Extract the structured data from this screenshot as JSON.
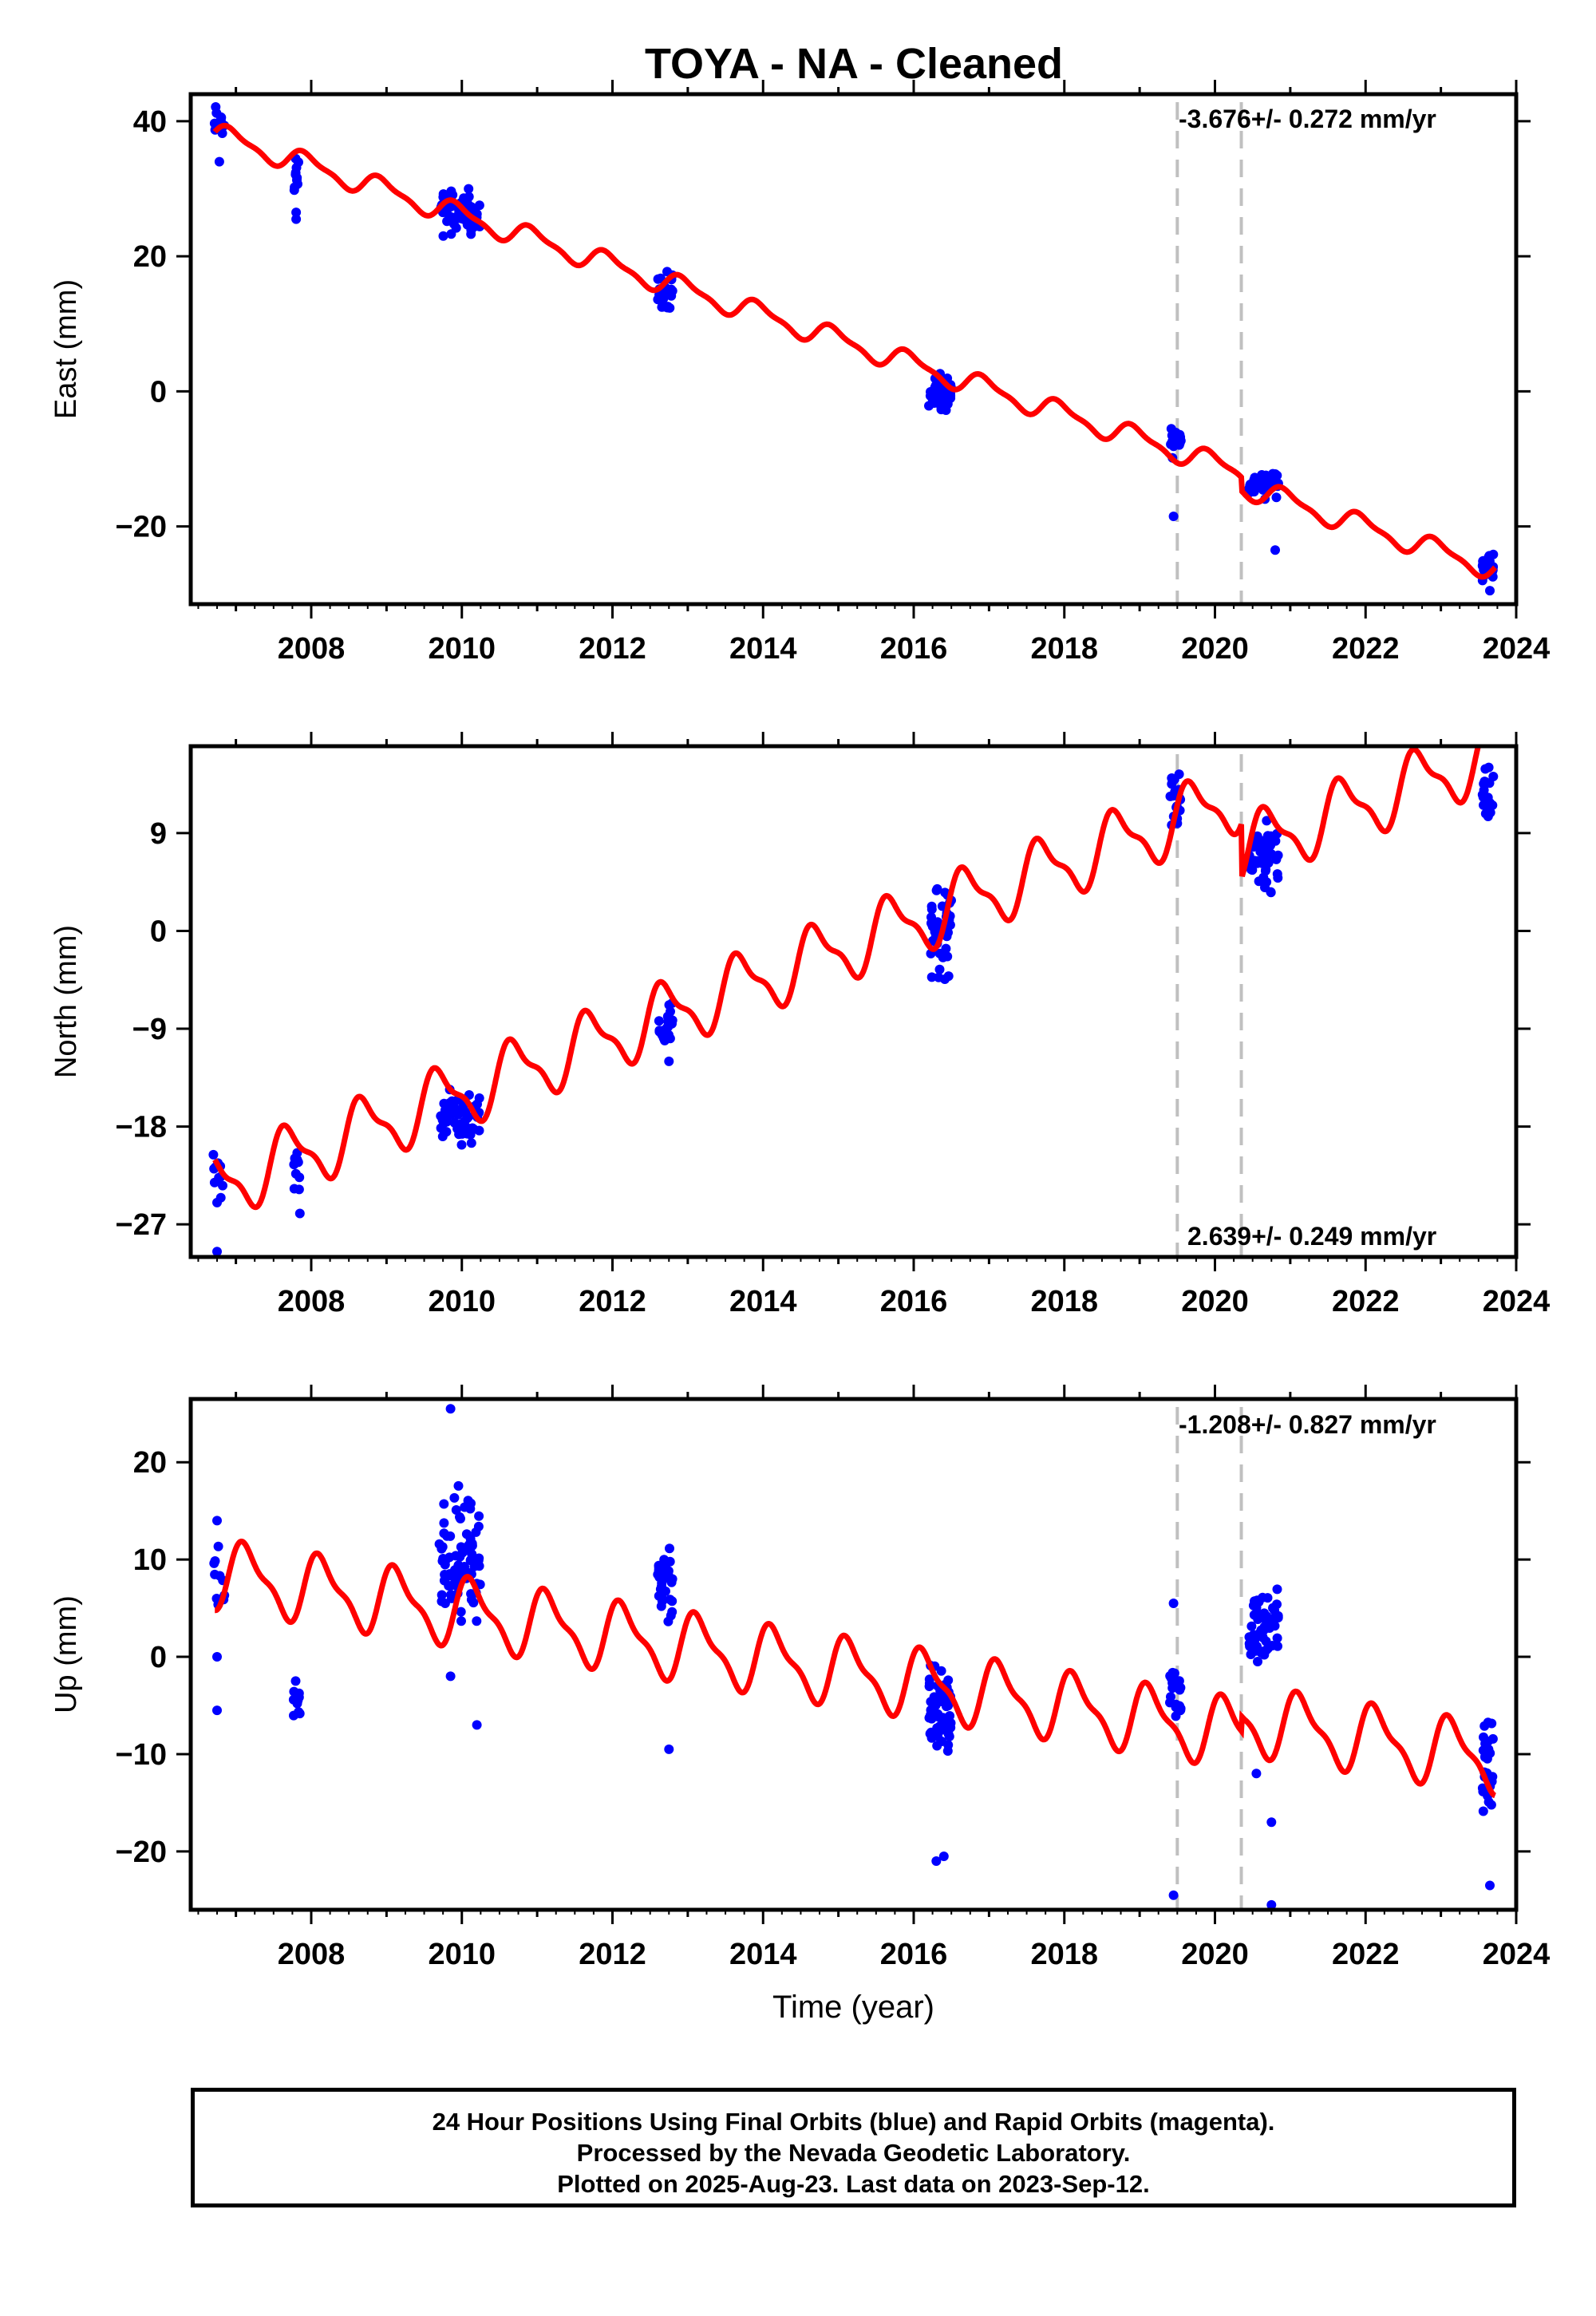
{
  "title": "TOYA  - NA - Cleaned",
  "footer": {
    "line1": "24 Hour Positions Using Final Orbits (blue) and Rapid Orbits (magenta).",
    "line2": "Processed by the Nevada Geodetic Laboratory.",
    "line3": "Plotted on 2025-Aug-23. Last data on 2023-Sep-12."
  },
  "colors": {
    "data": "#0000ff",
    "model": "#ff0000",
    "event_lines": "#c0c0c0"
  },
  "chart_data": [
    {
      "type": "scatter",
      "component": "East",
      "ylabel": "East (mm)",
      "xlabel": "",
      "xlim": [
        2006.4,
        2024.0
      ],
      "ylim": [
        -31.5,
        44
      ],
      "xticks": [
        "2008",
        "2010",
        "2012",
        "2014",
        "2016",
        "2018",
        "2020",
        "2022",
        "2024"
      ],
      "yticks": [
        "-20",
        "0",
        "20",
        "40"
      ],
      "event_lines": [
        2019.5,
        2020.35
      ],
      "rate_text": "-3.676+/- 0.272 mm/yr",
      "model": {
        "a0": 38,
        "slope": -3.676,
        "intercept_year": 2006.75,
        "amp": 1.5,
        "phase": 0.3,
        "steps": [
          {
            "t": 2020.35,
            "dy": -2.0
          }
        ]
      },
      "clusters": [
        {
          "t0": 2006.7,
          "t1": 2006.85,
          "center": 39.5,
          "spread": 2.0,
          "n": 10
        },
        {
          "t0": 2007.75,
          "t1": 2007.85,
          "center": 32.5,
          "spread": 3.0,
          "n": 10
        },
        {
          "t0": 2009.7,
          "t1": 2010.25,
          "center": 26.5,
          "spread": 2.4,
          "n": 60
        },
        {
          "t0": 2012.6,
          "t1": 2012.8,
          "center": 15.0,
          "spread": 2.0,
          "n": 22
        },
        {
          "t0": 2016.2,
          "t1": 2016.5,
          "center": -0.5,
          "spread": 2.0,
          "n": 50
        },
        {
          "t0": 2019.4,
          "t1": 2019.55,
          "center": -7.5,
          "spread": 1.5,
          "n": 18
        },
        {
          "t0": 2020.45,
          "t1": 2020.85,
          "center": -13.5,
          "spread": 1.5,
          "n": 45
        },
        {
          "t0": 2023.55,
          "t1": 2023.7,
          "center": -26.0,
          "spread": 1.5,
          "n": 22
        }
      ],
      "outliers": [
        [
          2006.78,
          34.0
        ],
        [
          2007.8,
          25.5
        ],
        [
          2007.8,
          26.5
        ],
        [
          2019.45,
          -18.5
        ],
        [
          2020.8,
          -23.5
        ],
        [
          2023.65,
          -29.5
        ]
      ]
    },
    {
      "type": "scatter",
      "component": "North",
      "ylabel": "North (mm)",
      "xlabel": "",
      "xlim": [
        2006.4,
        2024.0
      ],
      "ylim": [
        -30,
        17
      ],
      "xticks": [
        "2008",
        "2010",
        "2012",
        "2014",
        "2016",
        "2018",
        "2020",
        "2022",
        "2024"
      ],
      "yticks": [
        "-27",
        "-18",
        "-9",
        "0",
        "9"
      ],
      "event_lines": [
        2019.5,
        2020.35
      ],
      "rate_text": "2.639+/- 0.249 mm/yr",
      "model": {
        "a0": -23.5,
        "slope": 2.639,
        "intercept_year": 2006.75,
        "amp": 2.8,
        "phase": 0.55,
        "steps": [
          {
            "t": 2020.35,
            "dy": -5.0
          }
        ]
      },
      "clusters": [
        {
          "t0": 2006.7,
          "t1": 2006.85,
          "center": -22.5,
          "spread": 1.8,
          "n": 10
        },
        {
          "t0": 2007.75,
          "t1": 2007.85,
          "center": -22.0,
          "spread": 1.8,
          "n": 10
        },
        {
          "t0": 2009.7,
          "t1": 2010.25,
          "center": -17.0,
          "spread": 1.6,
          "n": 60
        },
        {
          "t0": 2012.6,
          "t1": 2012.8,
          "center": -8.5,
          "spread": 1.5,
          "n": 22
        },
        {
          "t0": 2016.2,
          "t1": 2016.5,
          "center": 0.0,
          "spread": 3.0,
          "n": 50
        },
        {
          "t0": 2019.4,
          "t1": 2019.55,
          "center": 12.0,
          "spread": 1.6,
          "n": 18
        },
        {
          "t0": 2020.45,
          "t1": 2020.85,
          "center": 7.0,
          "spread": 2.5,
          "n": 45
        },
        {
          "t0": 2023.55,
          "t1": 2023.7,
          "center": 12.0,
          "spread": 2.0,
          "n": 22
        }
      ],
      "outliers": [
        [
          2006.75,
          -29.5
        ],
        [
          2006.75,
          -25.0
        ],
        [
          2007.85,
          -26.0
        ],
        [
          2012.75,
          -12.0
        ]
      ]
    },
    {
      "type": "scatter",
      "component": "Up",
      "ylabel": "Up (mm)",
      "xlabel": "Time (year)",
      "xlim": [
        2006.4,
        2024.0
      ],
      "ylim": [
        -26,
        26.5
      ],
      "xticks": [
        "2008",
        "2010",
        "2012",
        "2014",
        "2016",
        "2018",
        "2020",
        "2022",
        "2024"
      ],
      "yticks": [
        "-20",
        "-10",
        "0",
        "10",
        "20"
      ],
      "event_lines": [
        2019.5,
        2020.35
      ],
      "rate_text": "-1.208+/- 0.827 mm/yr",
      "model": {
        "a0": 8.5,
        "slope": -1.208,
        "intercept_year": 2006.75,
        "amp": 3.2,
        "phase": 0.1,
        "steps": [
          {
            "t": 2020.35,
            "dy": 1.5
          }
        ]
      },
      "clusters": [
        {
          "t0": 2006.7,
          "t1": 2006.85,
          "center": 8.0,
          "spread": 2.5,
          "n": 10
        },
        {
          "t0": 2007.75,
          "t1": 2007.85,
          "center": -4.5,
          "spread": 2.2,
          "n": 12
        },
        {
          "t0": 2009.7,
          "t1": 2010.25,
          "center": 10.0,
          "spread": 4.5,
          "n": 80
        },
        {
          "t0": 2012.6,
          "t1": 2012.8,
          "center": 7.0,
          "spread": 2.8,
          "n": 35
        },
        {
          "t0": 2016.2,
          "t1": 2016.5,
          "center": -6.0,
          "spread": 3.5,
          "n": 60
        },
        {
          "t0": 2019.4,
          "t1": 2019.55,
          "center": -4.5,
          "spread": 2.2,
          "n": 22
        },
        {
          "t0": 2020.45,
          "t1": 2020.85,
          "center": 3.0,
          "spread": 3.0,
          "n": 60
        },
        {
          "t0": 2023.55,
          "t1": 2023.7,
          "center": -11.0,
          "spread": 4.0,
          "n": 28
        }
      ],
      "outliers": [
        [
          2006.75,
          14.0
        ],
        [
          2006.75,
          -5.5
        ],
        [
          2006.75,
          0.0
        ],
        [
          2009.85,
          25.5
        ],
        [
          2009.85,
          -2.0
        ],
        [
          2010.2,
          -7.0
        ],
        [
          2012.75,
          -9.5
        ],
        [
          2016.3,
          -21.0
        ],
        [
          2016.4,
          -20.5
        ],
        [
          2019.45,
          -24.5
        ],
        [
          2019.45,
          5.5
        ],
        [
          2020.55,
          -12.0
        ],
        [
          2020.75,
          -25.5
        ],
        [
          2020.75,
          -17.0
        ],
        [
          2023.65,
          -23.5
        ]
      ]
    }
  ]
}
